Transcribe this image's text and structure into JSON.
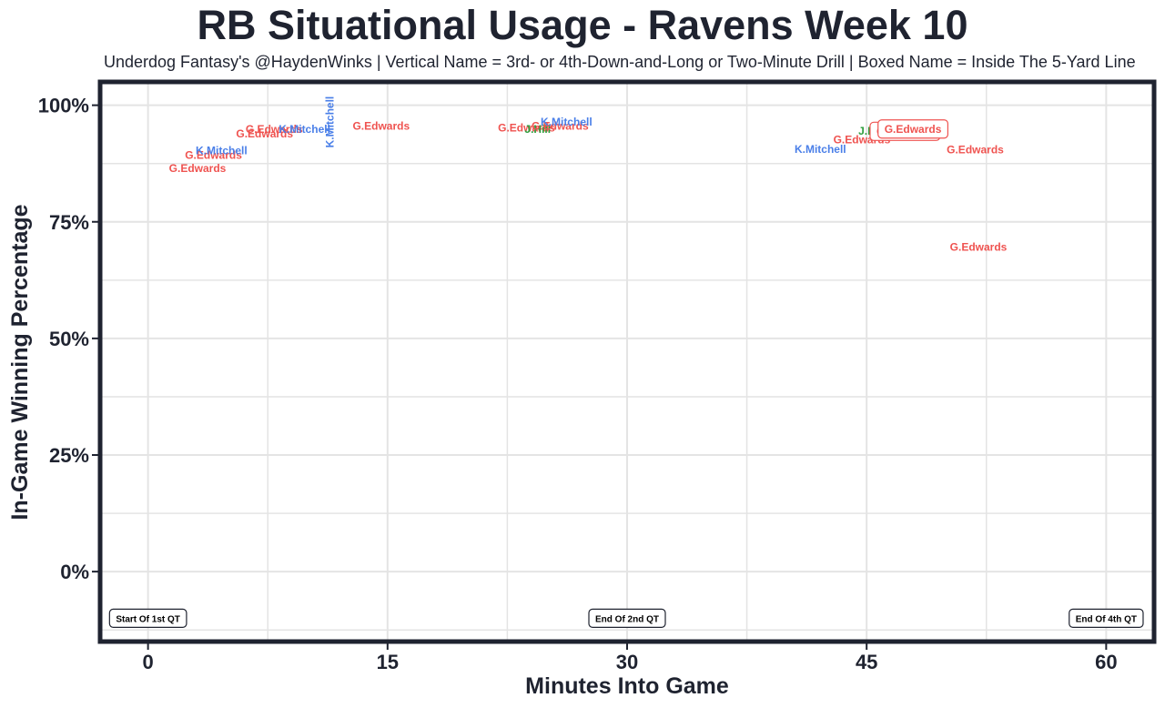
{
  "title": "RB Situational Usage - Ravens Week 10",
  "subtitle": "Underdog Fantasy's @HaydenWinks | Vertical Name = 3rd- or 4th-Down-and-Long or Two-Minute Drill | Boxed Name = Inside The 5-Yard Line",
  "colors": {
    "G.Edwards": "#ef5350",
    "K.Mitchell": "#4a7fe8",
    "J.Hill": "#2e9e3e",
    "frame": "#1f2330",
    "grid": "#e4e4e4"
  },
  "chart_data": {
    "type": "scatter",
    "title": "RB Situational Usage - Ravens Week 10",
    "xlabel": "Minutes Into Game",
    "ylabel": "In-Game Winning Percentage",
    "xlim": [
      -3,
      63
    ],
    "ylim": [
      -15,
      105
    ],
    "xticks": [
      0,
      15,
      30,
      45,
      60
    ],
    "xtick_labels": [
      "0",
      "15",
      "30",
      "45",
      "60"
    ],
    "yticks": [
      0,
      25,
      50,
      75,
      100
    ],
    "ytick_labels": [
      "0%",
      "25%",
      "50%",
      "75%",
      "100%"
    ],
    "grid": true,
    "points": [
      {
        "player": "G.Edwards",
        "x": 3.1,
        "y": 86.5,
        "style": "normal"
      },
      {
        "player": "G.Edwards",
        "x": 4.1,
        "y": 89.3,
        "style": "normal"
      },
      {
        "player": "K.Mitchell",
        "x": 4.6,
        "y": 90.3,
        "style": "normal"
      },
      {
        "player": "G.Edwards",
        "x": 7.3,
        "y": 93.9,
        "style": "normal"
      },
      {
        "player": "G.Edwards",
        "x": 7.9,
        "y": 94.9,
        "style": "normal"
      },
      {
        "player": "K.Mitchell",
        "x": 9.8,
        "y": 94.9,
        "style": "normal"
      },
      {
        "player": "K.Mitchell",
        "x": 11.4,
        "y": 96.4,
        "style": "vertical"
      },
      {
        "player": "G.Edwards",
        "x": 14.6,
        "y": 95.5,
        "style": "normal"
      },
      {
        "player": "G.Edwards",
        "x": 23.7,
        "y": 95.1,
        "style": "normal"
      },
      {
        "player": "J.Hill",
        "x": 24.4,
        "y": 94.9,
        "style": "normal"
      },
      {
        "player": "G.Edwards",
        "x": 25.8,
        "y": 95.5,
        "style": "normal"
      },
      {
        "player": "K.Mitchell",
        "x": 26.2,
        "y": 96.4,
        "style": "normal"
      },
      {
        "player": "K.Mitchell",
        "x": 42.1,
        "y": 90.6,
        "style": "normal"
      },
      {
        "player": "G.Edwards",
        "x": 44.7,
        "y": 92.6,
        "style": "normal"
      },
      {
        "player": "J.Hill",
        "x": 45.3,
        "y": 94.5,
        "style": "normal"
      },
      {
        "player": "G.Edwards",
        "x": 47.4,
        "y": 94.4,
        "style": "boxed"
      },
      {
        "player": "G.Edwards",
        "x": 47.9,
        "y": 94.9,
        "style": "boxed"
      },
      {
        "player": "G.Edwards",
        "x": 51.8,
        "y": 90.5,
        "style": "normal"
      },
      {
        "player": "G.Edwards",
        "x": 52.0,
        "y": 69.6,
        "style": "normal"
      }
    ],
    "annotations": [
      {
        "text": "Start Of 1st QT",
        "x": 0,
        "y": -10
      },
      {
        "text": "End Of 2nd QT",
        "x": 30,
        "y": -10
      },
      {
        "text": "End Of 4th QT",
        "x": 60,
        "y": -10
      }
    ]
  }
}
